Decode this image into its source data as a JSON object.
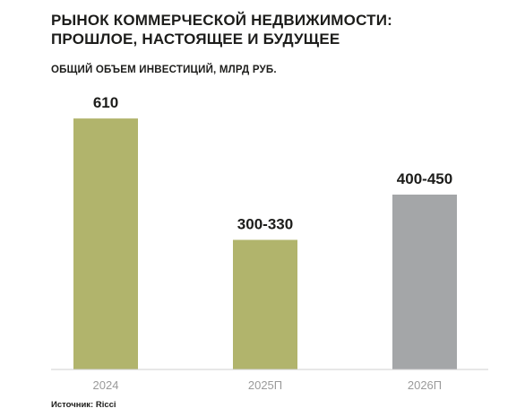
{
  "header": {
    "title_line1": "РЫНОК КОММЕРЧЕСКОЙ НЕДВИЖИМОСТИ:",
    "title_line2": "ПРОШЛОЕ, НАСТОЯЩЕЕ И БУДУЩЕЕ",
    "subtitle": "ОБЩИЙ ОБЪЕМ ИНВЕСТИЦИЙ, МЛРД РУБ."
  },
  "footer": {
    "source": "Источник: Ricci"
  },
  "chart_data": {
    "type": "bar",
    "title": "ОБЩИЙ ОБЪЕМ ИНВЕСТИЦИЙ, МЛРД РУБ.",
    "categories": [
      "2024",
      "2025П",
      "2026П"
    ],
    "values": [
      610,
      315,
      425
    ],
    "value_labels": [
      "610",
      "300-330",
      "400-450"
    ],
    "bar_colors": [
      "#b1b46c",
      "#b1b46c",
      "#a4a6a8"
    ],
    "ylim": [
      0,
      680
    ],
    "grid": false,
    "legend": "none",
    "xlabel": "",
    "ylabel": ""
  }
}
